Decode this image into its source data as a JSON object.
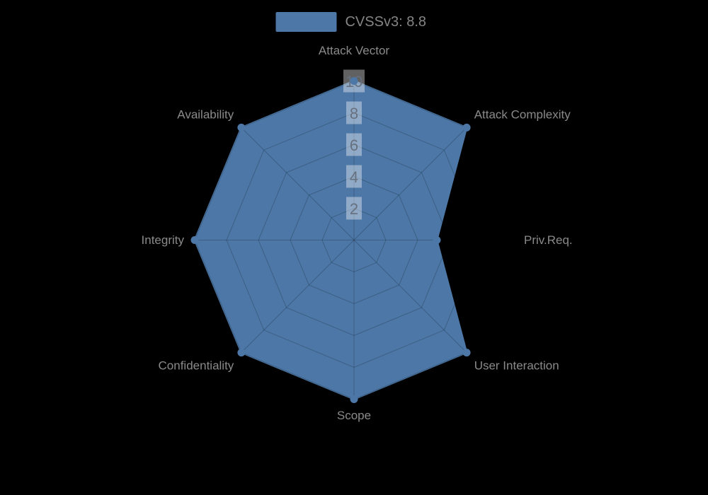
{
  "page": {
    "background": "#000000"
  },
  "legend": {
    "label": "CVSSv3: 8.8",
    "swatch_color": "#4C77A6",
    "text_color": "#858585"
  },
  "chart_data": {
    "type": "radar",
    "categories": [
      "Attack Vector",
      "Attack Complexity",
      "Priv.Req.",
      "User Interaction",
      "Scope",
      "Confidentiality",
      "Integrity",
      "Availability"
    ],
    "series": [
      {
        "name": "CVSSv3: 8.8",
        "values": [
          10,
          10,
          5.2,
          10,
          10,
          10,
          10,
          10
        ]
      }
    ],
    "axis_max": 10,
    "radial_ticks": [
      2,
      4,
      6,
      8,
      10
    ],
    "grid": true,
    "legend_position": "top-center",
    "colors": {
      "series_fill": "#4C77A6",
      "series_edge": "#4C77A6",
      "grid_line": "rgba(0,0,0,0.2)",
      "tick_box": "rgba(255,255,255,0.38)",
      "tick_text": "#66707E",
      "axis_label": "#8A8A8A",
      "background": "#000000"
    }
  }
}
